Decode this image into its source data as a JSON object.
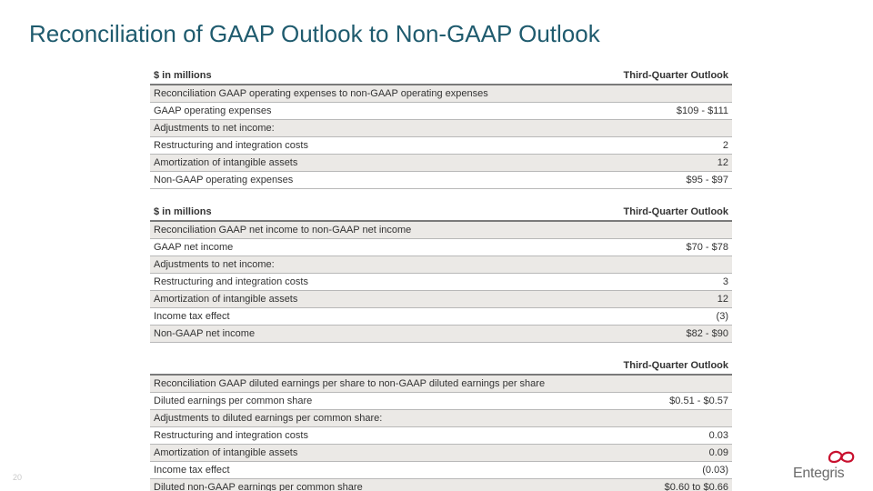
{
  "title": {
    "text": "Reconciliation of GAAP Outlook to Non-GAAP Outlook",
    "color": "#1f5b6e",
    "fontsize": 26
  },
  "page_number": "20",
  "logo_text": "Entegris",
  "logo_color": "#c8102e",
  "logo_text_color": "#6b6b6b",
  "table_stripe_color": "#ebe9e6",
  "table_border_color": "#b8b8b8",
  "table_header_border": "#7a7a7a",
  "table_fontsize": 11,
  "tables": [
    {
      "header_left": "$ in millions",
      "header_right": "Third-Quarter Outlook",
      "rows": [
        {
          "label": "Reconciliation GAAP operating expenses to non-GAAP operating expenses",
          "value": "",
          "shade": true
        },
        {
          "label": "GAAP operating expenses",
          "value": "$109 - $111",
          "shade": false
        },
        {
          "label": "Adjustments to net income:",
          "value": "",
          "shade": true
        },
        {
          "label": "Restructuring and integration costs",
          "value": "2",
          "shade": false
        },
        {
          "label": "Amortization of intangible assets",
          "value": "12",
          "shade": true
        },
        {
          "label": "Non-GAAP operating expenses",
          "value": "$95 - $97",
          "shade": false
        }
      ]
    },
    {
      "header_left": "$ in millions",
      "header_right": "Third-Quarter Outlook",
      "rows": [
        {
          "label": "Reconciliation GAAP net income to non-GAAP net income",
          "value": "",
          "shade": true
        },
        {
          "label": "GAAP net income",
          "value": "$70 - $78",
          "shade": false
        },
        {
          "label": "Adjustments to net income:",
          "value": "",
          "shade": true
        },
        {
          "label": "Restructuring and integration costs",
          "value": "3",
          "shade": false
        },
        {
          "label": "Amortization of intangible assets",
          "value": "12",
          "shade": true
        },
        {
          "label": "Income tax effect",
          "value": "(3)",
          "shade": false
        },
        {
          "label": "Non-GAAP net income",
          "value": "$82 - $90",
          "shade": true
        }
      ]
    },
    {
      "header_left": "",
      "header_right": "Third-Quarter Outlook",
      "rows": [
        {
          "label": "Reconciliation GAAP diluted earnings per share to non-GAAP diluted earnings per share",
          "value": "",
          "shade": true
        },
        {
          "label": "Diluted earnings per common share",
          "value": "$0.51 - $0.57",
          "shade": false
        },
        {
          "label": "Adjustments to diluted earnings per common share:",
          "value": "",
          "shade": true
        },
        {
          "label": "Restructuring and integration costs",
          "value": "0.03",
          "shade": false
        },
        {
          "label": "Amortization of intangible assets",
          "value": "0.09",
          "shade": true
        },
        {
          "label": "Income tax effect",
          "value": "(0.03)",
          "shade": false
        },
        {
          "label": "Diluted non-GAAP earnings per common share",
          "value": "$0.60 to $0.66",
          "shade": true
        }
      ]
    }
  ]
}
